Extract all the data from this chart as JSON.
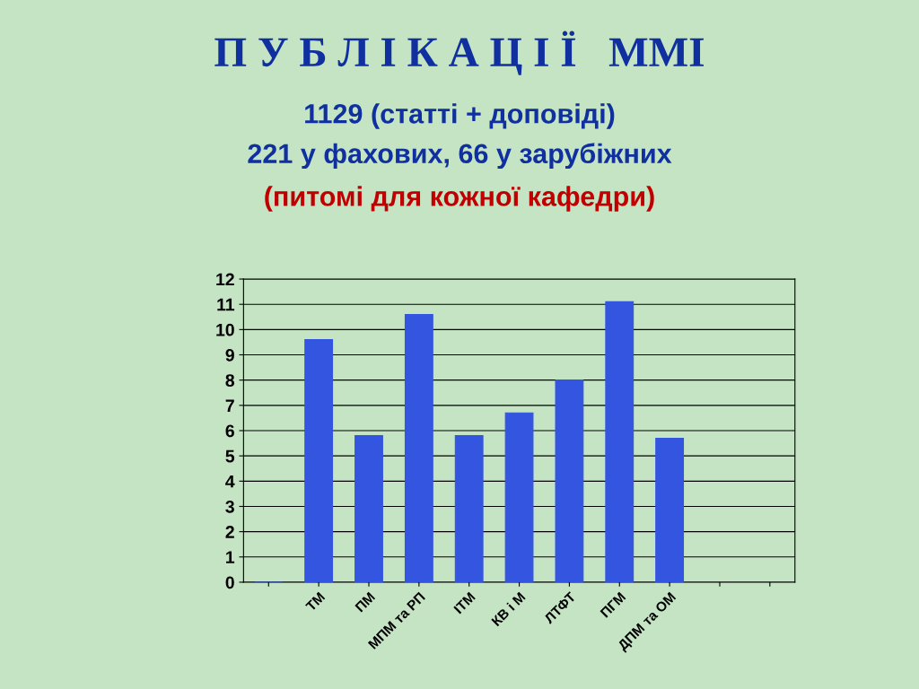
{
  "chart_data": {
    "type": "bar",
    "title": "П У Б Л І К А Ц І Ї   ММІ",
    "subtitle": "1129 (статті + доповіді)\n221 у фахових, 66 у зарубіжних",
    "annotations": [
      "(питомі для кожної кафедри)"
    ],
    "categories": [
      null,
      "ТМ",
      "ПМ",
      "МПМ та РП",
      "ІТМ",
      "КВ і М",
      "ЛТФТ",
      "ПГМ",
      "ДПМ та ОМ",
      null,
      null
    ],
    "values": [
      0,
      9.6,
      5.8,
      10.6,
      5.8,
      6.7,
      8.0,
      11.1,
      5.7,
      null,
      null
    ],
    "color": "#3355e0",
    "ylim": [
      0,
      12
    ],
    "yticks": [
      0,
      1,
      2,
      3,
      4,
      5,
      6,
      7,
      8,
      9,
      10,
      11,
      12
    ],
    "grid": "y"
  }
}
